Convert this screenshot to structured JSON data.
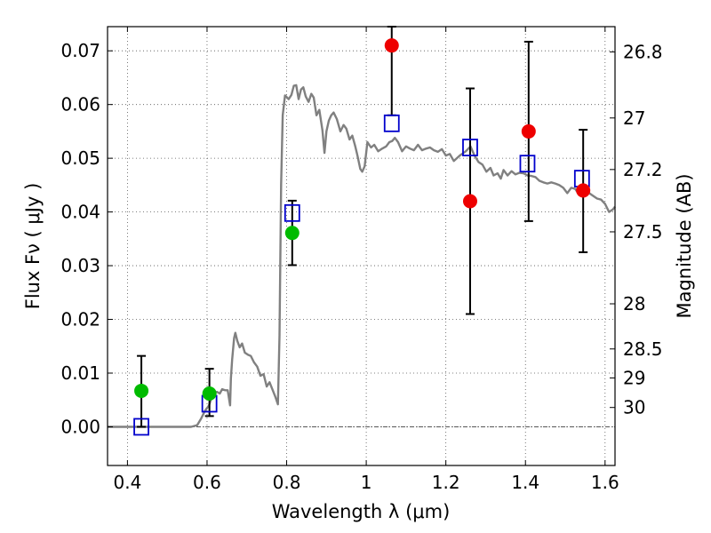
{
  "chart_data": {
    "type": "scatter",
    "title": "",
    "xlabel": "Wavelength  λ (μm)",
    "ylabel": "Flux  Fν  ( μJy )",
    "ylabel_right": "Magnitude (AB)",
    "xlim": [
      0.35,
      1.625
    ],
    "ylim": [
      -0.0072,
      0.0745
    ],
    "grid": true,
    "x_ticks": [
      0.4,
      0.6,
      0.8,
      1.0,
      1.2,
      1.4,
      1.6
    ],
    "x_tick_labels": [
      "0.4",
      "0.6",
      "0.8",
      "1",
      "1.2",
      "1.4",
      "1.6"
    ],
    "y_ticks": [
      0.0,
      0.01,
      0.02,
      0.03,
      0.04,
      0.05,
      0.06,
      0.07
    ],
    "y_tick_labels": [
      "0.00",
      "0.01",
      "0.02",
      "0.03",
      "0.04",
      "0.05",
      "0.06",
      "0.07"
    ],
    "mag_ticks": [
      {
        "label": "26.8",
        "flux": 0.0698
      },
      {
        "label": "27",
        "flux": 0.0575
      },
      {
        "label": "27.2",
        "flux": 0.0479
      },
      {
        "label": "27.5",
        "flux": 0.0363
      },
      {
        "label": "28",
        "flux": 0.0229
      },
      {
        "label": "28.5",
        "flux": 0.0145
      },
      {
        "label": "29",
        "flux": 0.0091
      },
      {
        "label": "30",
        "flux": 0.0036
      }
    ],
    "colors": {
      "model": "#808080",
      "observed_optical": "#00bb00",
      "observed_nir": "#ee0000",
      "model_bands": "#0000cc",
      "errorbar": "#000000",
      "grid": "#555555",
      "zero_line": "#555555"
    },
    "series": [
      {
        "kind": "line",
        "points": [
          [
            0.35,
            0.0
          ],
          [
            0.56,
            0.0
          ],
          [
            0.575,
            0.0003
          ],
          [
            0.585,
            0.0015
          ],
          [
            0.595,
            0.003
          ],
          [
            0.605,
            0.004
          ],
          [
            0.615,
            0.0063
          ],
          [
            0.625,
            0.0065
          ],
          [
            0.632,
            0.0062
          ],
          [
            0.638,
            0.007
          ],
          [
            0.645,
            0.0068
          ],
          [
            0.652,
            0.0068
          ],
          [
            0.658,
            0.004
          ],
          [
            0.66,
            0.009
          ],
          [
            0.663,
            0.0125
          ],
          [
            0.668,
            0.0165
          ],
          [
            0.671,
            0.0175
          ],
          [
            0.676,
            0.016
          ],
          [
            0.682,
            0.0148
          ],
          [
            0.688,
            0.0155
          ],
          [
            0.695,
            0.0138
          ],
          [
            0.703,
            0.0134
          ],
          [
            0.71,
            0.0132
          ],
          [
            0.718,
            0.012
          ],
          [
            0.726,
            0.0112
          ],
          [
            0.734,
            0.0095
          ],
          [
            0.742,
            0.0098
          ],
          [
            0.75,
            0.0075
          ],
          [
            0.757,
            0.0083
          ],
          [
            0.765,
            0.0068
          ],
          [
            0.772,
            0.0055
          ],
          [
            0.778,
            0.0042
          ],
          [
            0.782,
            0.017
          ],
          [
            0.786,
            0.045
          ],
          [
            0.79,
            0.058
          ],
          [
            0.796,
            0.0617
          ],
          [
            0.805,
            0.061
          ],
          [
            0.812,
            0.0618
          ],
          [
            0.818,
            0.0635
          ],
          [
            0.824,
            0.0636
          ],
          [
            0.83,
            0.061
          ],
          [
            0.836,
            0.0628
          ],
          [
            0.842,
            0.0632
          ],
          [
            0.848,
            0.0615
          ],
          [
            0.855,
            0.0605
          ],
          [
            0.862,
            0.062
          ],
          [
            0.868,
            0.0613
          ],
          [
            0.875,
            0.058
          ],
          [
            0.882,
            0.059
          ],
          [
            0.89,
            0.0552
          ],
          [
            0.895,
            0.051
          ],
          [
            0.9,
            0.055
          ],
          [
            0.906,
            0.057
          ],
          [
            0.912,
            0.058
          ],
          [
            0.918,
            0.0585
          ],
          [
            0.926,
            0.0573
          ],
          [
            0.935,
            0.055
          ],
          [
            0.943,
            0.0562
          ],
          [
            0.95,
            0.0555
          ],
          [
            0.958,
            0.0535
          ],
          [
            0.965,
            0.0542
          ],
          [
            0.972,
            0.0523
          ],
          [
            0.978,
            0.0505
          ],
          [
            0.985,
            0.048
          ],
          [
            0.99,
            0.0475
          ],
          [
            0.996,
            0.0485
          ],
          [
            1.003,
            0.053
          ],
          [
            1.012,
            0.052
          ],
          [
            1.02,
            0.0525
          ],
          [
            1.03,
            0.0513
          ],
          [
            1.04,
            0.0518
          ],
          [
            1.05,
            0.0522
          ],
          [
            1.058,
            0.053
          ],
          [
            1.065,
            0.0532
          ],
          [
            1.072,
            0.0538
          ],
          [
            1.08,
            0.053
          ],
          [
            1.09,
            0.0513
          ],
          [
            1.1,
            0.0522
          ],
          [
            1.11,
            0.0518
          ],
          [
            1.12,
            0.0515
          ],
          [
            1.13,
            0.0525
          ],
          [
            1.14,
            0.0515
          ],
          [
            1.15,
            0.0518
          ],
          [
            1.16,
            0.052
          ],
          [
            1.17,
            0.0515
          ],
          [
            1.18,
            0.0512
          ],
          [
            1.19,
            0.0517
          ],
          [
            1.2,
            0.0505
          ],
          [
            1.21,
            0.0508
          ],
          [
            1.22,
            0.0495
          ],
          [
            1.235,
            0.0505
          ],
          [
            1.25,
            0.0513
          ],
          [
            1.262,
            0.0522
          ],
          [
            1.272,
            0.0505
          ],
          [
            1.282,
            0.0493
          ],
          [
            1.292,
            0.0488
          ],
          [
            1.302,
            0.0475
          ],
          [
            1.312,
            0.0482
          ],
          [
            1.32,
            0.0468
          ],
          [
            1.33,
            0.0472
          ],
          [
            1.338,
            0.0462
          ],
          [
            1.345,
            0.0478
          ],
          [
            1.355,
            0.0468
          ],
          [
            1.365,
            0.0476
          ],
          [
            1.375,
            0.047
          ],
          [
            1.385,
            0.0473
          ],
          [
            1.395,
            0.0472
          ],
          [
            1.405,
            0.0468
          ],
          [
            1.415,
            0.0467
          ],
          [
            1.425,
            0.0465
          ],
          [
            1.435,
            0.0458
          ],
          [
            1.445,
            0.0455
          ],
          [
            1.455,
            0.0453
          ],
          [
            1.465,
            0.0455
          ],
          [
            1.475,
            0.0453
          ],
          [
            1.485,
            0.045
          ],
          [
            1.495,
            0.0445
          ],
          [
            1.505,
            0.0435
          ],
          [
            1.515,
            0.0445
          ],
          [
            1.525,
            0.0443
          ],
          [
            1.535,
            0.0432
          ],
          [
            1.548,
            0.0438
          ],
          [
            1.56,
            0.0435
          ],
          [
            1.57,
            0.043
          ],
          [
            1.58,
            0.0425
          ],
          [
            1.59,
            0.0423
          ],
          [
            1.6,
            0.0415
          ],
          [
            1.61,
            0.04
          ],
          [
            1.62,
            0.0405
          ],
          [
            1.625,
            0.041
          ]
        ]
      },
      {
        "kind": "scatter",
        "marker": "circle",
        "color_key": "observed_optical",
        "points": [
          {
            "x": 0.435,
            "y": 0.0067,
            "ylo": 0.0,
            "yhi": 0.0132
          },
          {
            "x": 0.606,
            "y": 0.0062,
            "ylo": 0.002,
            "yhi": 0.0108
          },
          {
            "x": 0.814,
            "y": 0.0361,
            "ylo": 0.0301,
            "yhi": 0.0421
          }
        ]
      },
      {
        "kind": "scatter",
        "marker": "circle",
        "color_key": "observed_nir",
        "points": [
          {
            "x": 1.064,
            "y": 0.071,
            "ylo": 0.058,
            "yhi": 0.0745
          },
          {
            "x": 1.261,
            "y": 0.042,
            "ylo": 0.021,
            "yhi": 0.063
          },
          {
            "x": 1.408,
            "y": 0.055,
            "ylo": 0.0383,
            "yhi": 0.0717
          },
          {
            "x": 1.545,
            "y": 0.044,
            "ylo": 0.0325,
            "yhi": 0.0553
          }
        ]
      },
      {
        "kind": "scatter",
        "marker": "open-square",
        "color_key": "model_bands",
        "points": [
          {
            "x": 0.435,
            "y": 0.0
          },
          {
            "x": 0.606,
            "y": 0.0043
          },
          {
            "x": 0.814,
            "y": 0.0398
          },
          {
            "x": 1.064,
            "y": 0.0565
          },
          {
            "x": 1.261,
            "y": 0.052
          },
          {
            "x": 1.405,
            "y": 0.049
          },
          {
            "x": 1.542,
            "y": 0.0462
          }
        ]
      }
    ]
  }
}
